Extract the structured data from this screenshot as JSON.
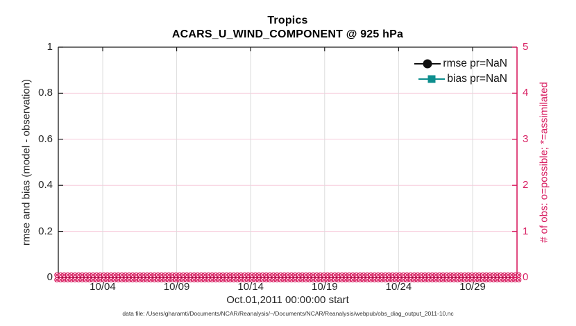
{
  "chart_data": {
    "type": "line",
    "title": "Tropics",
    "subtitle": "ACARS_U_WIND_COMPONENT @ 925 hPa",
    "xlabel": "Oct.01,2011 00:00:00 start",
    "ylabel_left": "rmse and bias (model - observation)",
    "ylabel_right": "# of obs: o=possible; *=assimilated",
    "grid": true,
    "legend_position": "top-right-inside",
    "x_range_days": [
      0,
      31
    ],
    "x_ticks": [
      {
        "day": 3,
        "label": "10/04"
      },
      {
        "day": 8,
        "label": "10/09"
      },
      {
        "day": 13,
        "label": "10/14"
      },
      {
        "day": 18,
        "label": "10/19"
      },
      {
        "day": 23,
        "label": "10/24"
      },
      {
        "day": 28,
        "label": "10/29"
      }
    ],
    "y_left": {
      "min": 0,
      "max": 1,
      "ticks": [
        {
          "value": 0,
          "label": "0"
        },
        {
          "value": 0.2,
          "label": "0.2"
        },
        {
          "value": 0.4,
          "label": "0.4"
        },
        {
          "value": 0.6,
          "label": "0.6"
        },
        {
          "value": 0.8,
          "label": "0.8"
        },
        {
          "value": 1,
          "label": "1"
        }
      ]
    },
    "y_right": {
      "min": 0,
      "max": 5,
      "ticks": [
        {
          "value": 0,
          "label": "0"
        },
        {
          "value": 1,
          "label": "1"
        },
        {
          "value": 2,
          "label": "2"
        },
        {
          "value": 3,
          "label": "3"
        },
        {
          "value": 4,
          "label": "4"
        },
        {
          "value": 5,
          "label": "5"
        }
      ]
    },
    "series": [
      {
        "name": "rmse",
        "legend_label": "rmse pr=NaN",
        "color": "#111111",
        "marker": "circle",
        "values": null
      },
      {
        "name": "bias",
        "legend_label": "bias pr=NaN",
        "color": "#0d8e8e",
        "marker": "square",
        "values": null
      }
    ],
    "obs_counts": {
      "plotted_value": 0,
      "series": [
        {
          "name": "possible",
          "marker": "o",
          "value": 0
        },
        {
          "name": "assimilated",
          "marker": "*",
          "value": 0
        }
      ]
    }
  },
  "caption": "data file: /Users/gharamti/Documents/NCAR/Reanalysis/~/Documents/NCAR/Reanalysis/webpub/obs_diag_output_2011-10.nc",
  "colors": {
    "pink": "#d81f62",
    "grid_pink": "#f7ccdc",
    "grid_gray": "#dcdcdc",
    "axis_black": "#1a1a1a",
    "teal": "#0d8e8e",
    "text": "#262626"
  }
}
